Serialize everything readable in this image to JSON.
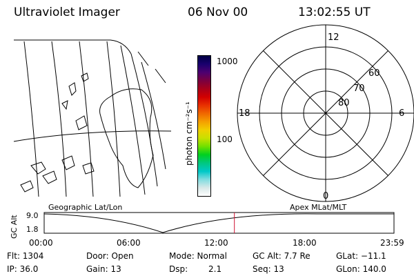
{
  "header": {
    "instrument": "Ultraviolet Imager",
    "date": "06 Nov 00",
    "time": "13:02:55 UT"
  },
  "colorbar": {
    "tick_labels": [
      "1000",
      "100"
    ],
    "unit_label": "photon cm⁻²s⁻¹",
    "colors": [
      "#000044",
      "#1a006e",
      "#4d0070",
      "#7a0040",
      "#a8001a",
      "#d20000",
      "#e83000",
      "#f06800",
      "#f5a000",
      "#f0d000",
      "#c8e000",
      "#70e000",
      "#00d020",
      "#00c880",
      "#00c8c8",
      "#80dce0",
      "#d8e8e8",
      "#ffffff"
    ]
  },
  "polar": {
    "lat_labels": [
      "60",
      "70",
      "80"
    ],
    "mlt_labels": {
      "top": "12",
      "left": "18",
      "right": "6",
      "bottom": "0"
    }
  },
  "timeline": {
    "axis_title": "GC Alt",
    "y_labels": [
      "9.0",
      "1.8"
    ],
    "left_title": "Geographic Lat/Lon",
    "right_title": "Apex MLat/MLT",
    "x_labels": [
      "00:00",
      "06:00",
      "12:00",
      "18:00",
      "23:59"
    ],
    "current_time_hours": 13.05,
    "marker_color": "#d01030"
  },
  "status": {
    "flt": "Flt: 1304",
    "ip": "IP: 36.0",
    "door": "Door: Open",
    "gain": "Gain: 13",
    "mode": "Mode: Normal",
    "dsp_label": "Dsp:",
    "dsp_value": "2.1",
    "gc_alt": "GC Alt: 7.7 Re",
    "seq": "Seq: 13",
    "glat": "GLat: −11.1",
    "glon": "GLon: 140.0"
  }
}
